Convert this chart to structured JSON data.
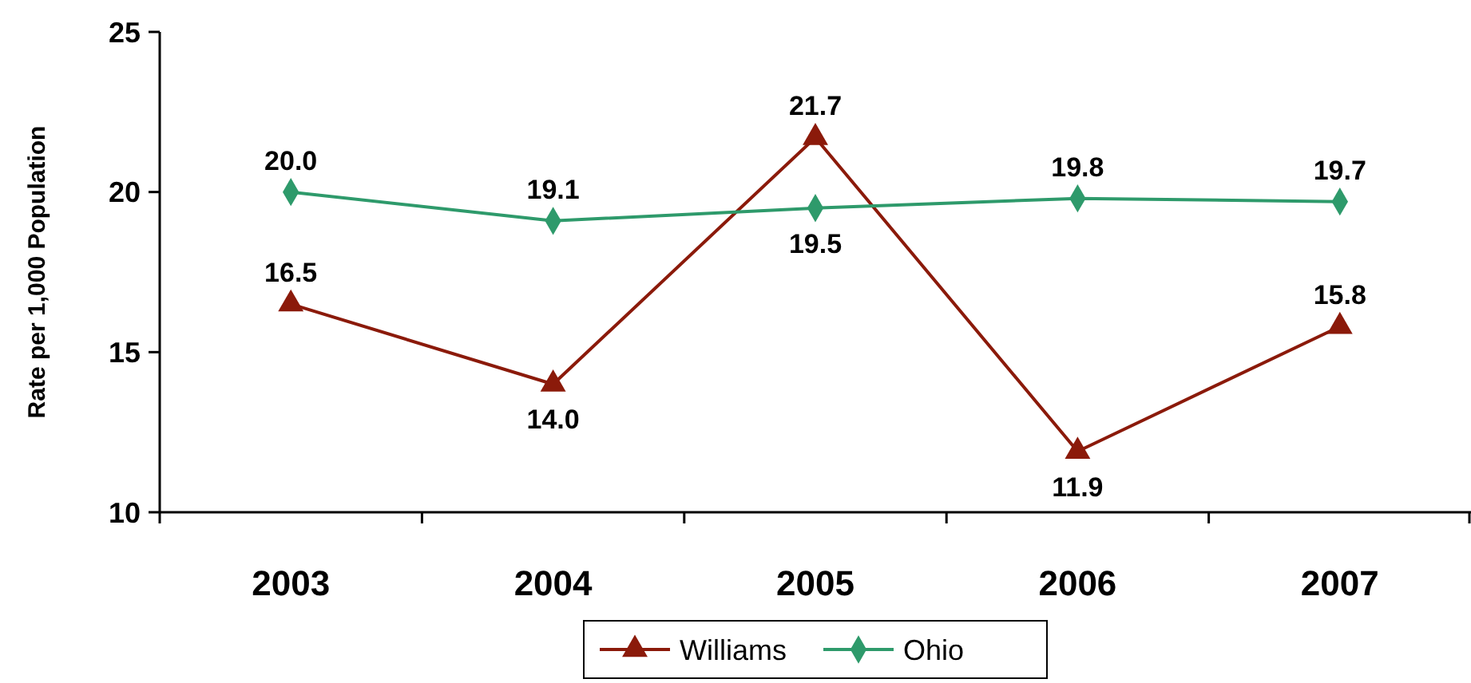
{
  "chart_data": {
    "type": "line",
    "ylabel": "Rate per 1,000 Population",
    "categories": [
      "2003",
      "2004",
      "2005",
      "2006",
      "2007"
    ],
    "series": [
      {
        "name": "Williams",
        "color": "#8b1a0a",
        "marker": "triangle",
        "values": [
          16.5,
          14.0,
          21.7,
          11.9,
          15.8
        ],
        "value_labels": [
          "16.5",
          "14.0",
          "21.7",
          "11.9",
          "15.8"
        ]
      },
      {
        "name": "Ohio",
        "color": "#2e9a6b",
        "marker": "diamond",
        "values": [
          20.0,
          19.1,
          19.5,
          19.8,
          19.7
        ],
        "value_labels": [
          "20.0",
          "19.1",
          "19.5",
          "19.8",
          "19.7"
        ]
      }
    ],
    "ylim": [
      10,
      25
    ],
    "yticks": [
      10,
      15,
      20,
      25
    ],
    "grid": false,
    "legend": "bottom"
  }
}
